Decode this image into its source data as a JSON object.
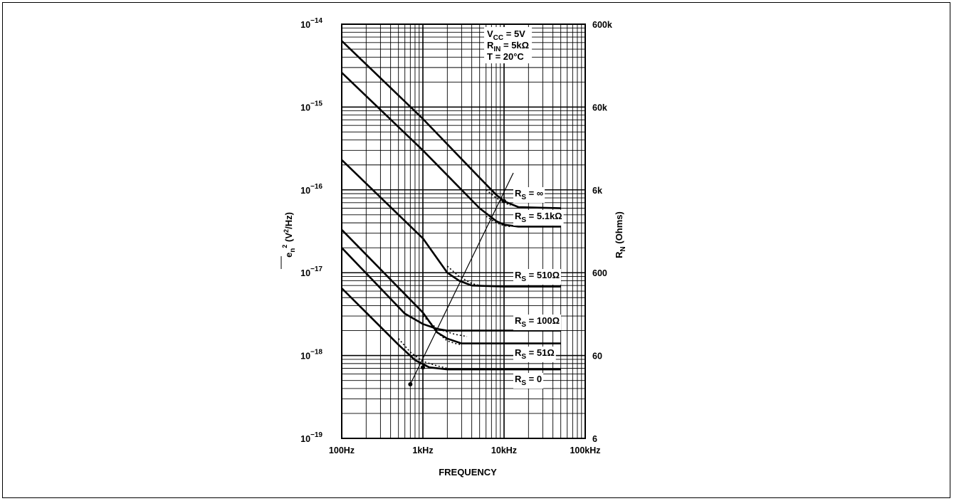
{
  "chart_data": {
    "type": "line",
    "x_scale": "log",
    "y_scale": "log",
    "grid": true,
    "xlim": [
      100,
      100000
    ],
    "ylim": [
      1e-19,
      1e-14
    ],
    "right_ylim": [
      6,
      600000
    ],
    "xlabel": "FREQUENCY",
    "ylabel_left": "e_n^2 (V^2/Hz)",
    "ylabel_right": "R_N (Ohms)",
    "x_ticks": [
      {
        "value": 100,
        "label": "100Hz"
      },
      {
        "value": 1000,
        "label": "1kHz"
      },
      {
        "value": 10000,
        "label": "10kHz"
      },
      {
        "value": 100000,
        "label": "100kHz"
      }
    ],
    "y_ticks_left": [
      {
        "value": 1e-19,
        "base": "10",
        "exp": "−19"
      },
      {
        "value": 1e-18,
        "base": "10",
        "exp": "−18"
      },
      {
        "value": 1e-17,
        "base": "10",
        "exp": "−17"
      },
      {
        "value": 1e-16,
        "base": "10",
        "exp": "−16"
      },
      {
        "value": 1e-15,
        "base": "10",
        "exp": "−15"
      },
      {
        "value": 1e-14,
        "base": "10",
        "exp": "−14"
      }
    ],
    "y_ticks_right": [
      {
        "value": 6,
        "label": "6"
      },
      {
        "value": 60,
        "label": "60"
      },
      {
        "value": 600,
        "label": "600"
      },
      {
        "value": 6000,
        "label": "6k"
      },
      {
        "value": 60000,
        "label": "60k"
      },
      {
        "value": 600000,
        "label": "600k"
      }
    ],
    "conditions": [
      {
        "main": "V",
        "sub": "CC",
        "rest": " = 5V"
      },
      {
        "main": "R",
        "sub": "IN",
        "rest": " = 5kΩ"
      },
      {
        "main": "T",
        "sub": "",
        "rest": " = 20°C"
      }
    ],
    "series": [
      {
        "name": "R_S = ∞",
        "label_main": "R",
        "label_sub": "S",
        "label_rest": " = ∞",
        "x": [
          100,
          1000,
          5000,
          8000,
          10000,
          15000,
          50000
        ],
        "y": [
          6.3e-15,
          7.2e-16,
          1.4e-16,
          8.7e-17,
          7.3e-17,
          6.2e-17,
          6e-17
        ]
      },
      {
        "name": "R_S = 5.1kΩ",
        "label_main": "R",
        "label_sub": "S",
        "label_rest": " = 5.1kΩ",
        "x": [
          100,
          1000,
          5000,
          8000,
          10000,
          15000,
          50000
        ],
        "y": [
          2.6e-15,
          3e-16,
          6e-17,
          4.2e-17,
          3.8e-17,
          3.6e-17,
          3.6e-17
        ]
      },
      {
        "name": "R_S = 510Ω",
        "label_main": "R",
        "label_sub": "S",
        "label_rest": " = 510Ω",
        "x": [
          100,
          1000,
          2000,
          2800,
          4000,
          10000,
          50000
        ],
        "y": [
          2.3e-16,
          2.6e-17,
          1e-17,
          8e-18,
          7e-18,
          6.8e-18,
          6.8e-18
        ]
      },
      {
        "name": "R_S = 100Ω",
        "label_main": "R",
        "label_sub": "S",
        "label_rest": " = 100Ω",
        "x": [
          100,
          1000,
          1500,
          2000,
          3000,
          50000
        ],
        "y": [
          3.3e-17,
          3.3e-18,
          1.9e-18,
          1.6e-18,
          1.4e-18,
          1.4e-18
        ]
      },
      {
        "name": "R_S = 51Ω",
        "label_main": "R",
        "label_sub": "S",
        "label_rest": " = 51Ω",
        "x": [
          100,
          600,
          1000,
          1500,
          2000,
          50000
        ],
        "y": [
          2e-17,
          3.2e-18,
          2.4e-18,
          2.1e-18,
          2e-18,
          2e-18
        ]
      },
      {
        "name": "R_S = 0",
        "label_main": "R",
        "label_sub": "S",
        "label_rest": " = 0",
        "x": [
          100,
          500,
          800,
          1200,
          2000,
          50000
        ],
        "y": [
          6.5e-18,
          1.35e-18,
          8.8e-19,
          7.2e-19,
          6.8e-19,
          6.8e-19
        ]
      }
    ],
    "dotted_knees": [
      {
        "x": [
          500,
          700,
          1000,
          1500,
          2000
        ],
        "y": [
          1.6e-18,
          1.1e-18,
          8.5e-19,
          7.5e-19,
          7e-19
        ]
      },
      {
        "x": [
          1000,
          1500,
          2500,
          3500
        ],
        "y": [
          3e-18,
          2.1e-18,
          1.8e-18,
          1.7e-18
        ]
      },
      {
        "x": [
          1500,
          2000,
          2500,
          3000
        ],
        "y": [
          1.9e-18,
          1.5e-18,
          1.4e-18,
          1.35e-18
        ]
      },
      {
        "x": [
          2000,
          2800,
          4000,
          5000
        ],
        "y": [
          1.2e-17,
          9e-18,
          7.4e-18,
          7e-18
        ]
      },
      {
        "x": [
          6000,
          8000,
          10000,
          12000
        ],
        "y": [
          4.8e-17,
          4e-17,
          3.7e-17,
          3.6e-17
        ]
      },
      {
        "x": [
          6000,
          8000,
          10000,
          12000
        ],
        "y": [
          1e-16,
          8e-17,
          7e-17,
          6.5e-17
        ]
      }
    ],
    "corner_line": {
      "x": [
        700,
        13000
      ],
      "y": [
        4.5e-19,
        1.6e-16
      ]
    }
  }
}
